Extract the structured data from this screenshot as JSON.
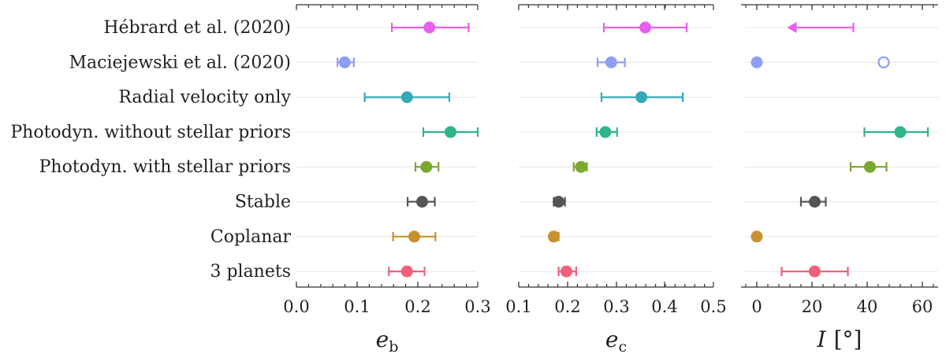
{
  "chart_data": {
    "type": "scatter",
    "rows": [
      "Hébrard et al. (2020)",
      "Maciejewski et al. (2020)",
      "Radial velocity only",
      "Photodyn. without stellar priors",
      "Photodyn. with stellar priors",
      "Stable",
      "Coplanar",
      "3 planets"
    ],
    "colors": [
      "#e85ef0",
      "#8c9ef5",
      "#35a9b8",
      "#2fb587",
      "#7ba82f",
      "#555555",
      "#c8912e",
      "#f0607a"
    ],
    "panels": [
      {
        "id": "eb",
        "xlabel": "e",
        "xlabel_sub": "b",
        "xlim": [
          0.0,
          0.3
        ],
        "ticks": [
          "0.0",
          "0.1",
          "0.2",
          "0.3"
        ],
        "points": [
          {
            "row": 0,
            "value": 0.22,
            "low": 0.158,
            "high": 0.285
          },
          {
            "row": 1,
            "value": 0.08,
            "low": 0.068,
            "high": 0.095
          },
          {
            "row": 2,
            "value": 0.183,
            "low": 0.113,
            "high": 0.253
          },
          {
            "row": 3,
            "value": 0.255,
            "low": 0.21,
            "high": 0.3
          },
          {
            "row": 4,
            "value": 0.215,
            "low": 0.197,
            "high": 0.235
          },
          {
            "row": 5,
            "value": 0.208,
            "low": 0.184,
            "high": 0.229
          },
          {
            "row": 6,
            "value": 0.195,
            "low": 0.16,
            "high": 0.23
          },
          {
            "row": 7,
            "value": 0.183,
            "low": 0.153,
            "high": 0.212
          }
        ]
      },
      {
        "id": "ec",
        "xlabel": "e",
        "xlabel_sub": "c",
        "xlim": [
          0.1,
          0.5
        ],
        "ticks": [
          "0.1",
          "0.2",
          "0.3",
          "0.4",
          "0.5"
        ],
        "points": [
          {
            "row": 0,
            "value": 0.36,
            "low": 0.275,
            "high": 0.445
          },
          {
            "row": 1,
            "value": 0.29,
            "low": 0.262,
            "high": 0.318
          },
          {
            "row": 2,
            "value": 0.352,
            "low": 0.27,
            "high": 0.437
          },
          {
            "row": 3,
            "value": 0.278,
            "low": 0.26,
            "high": 0.302
          },
          {
            "row": 4,
            "value": 0.228,
            "low": 0.213,
            "high": 0.24
          },
          {
            "row": 5,
            "value": 0.182,
            "low": 0.172,
            "high": 0.195
          },
          {
            "row": 6,
            "value": 0.172,
            "low": 0.165,
            "high": 0.182
          },
          {
            "row": 7,
            "value": 0.198,
            "low": 0.182,
            "high": 0.218
          }
        ]
      },
      {
        "id": "I",
        "xlabel": "I",
        "xlabel_unit": "[°]",
        "xlim": [
          -3,
          66
        ],
        "ticks": [
          "0",
          "20",
          "40",
          "60"
        ],
        "points": [
          {
            "row": 0,
            "upper_limit": 35,
            "low": 11
          },
          {
            "row": 1,
            "value": 0
          },
          {
            "row": 1,
            "value": 46,
            "open": true
          },
          {
            "row": 3,
            "value": 52,
            "low": 39,
            "high": 62
          },
          {
            "row": 4,
            "value": 41,
            "low": 34,
            "high": 47
          },
          {
            "row": 5,
            "value": 21,
            "low": 16,
            "high": 25
          },
          {
            "row": 6,
            "value": 0
          },
          {
            "row": 7,
            "value": 21,
            "low": 9,
            "high": 33
          }
        ]
      }
    ]
  }
}
